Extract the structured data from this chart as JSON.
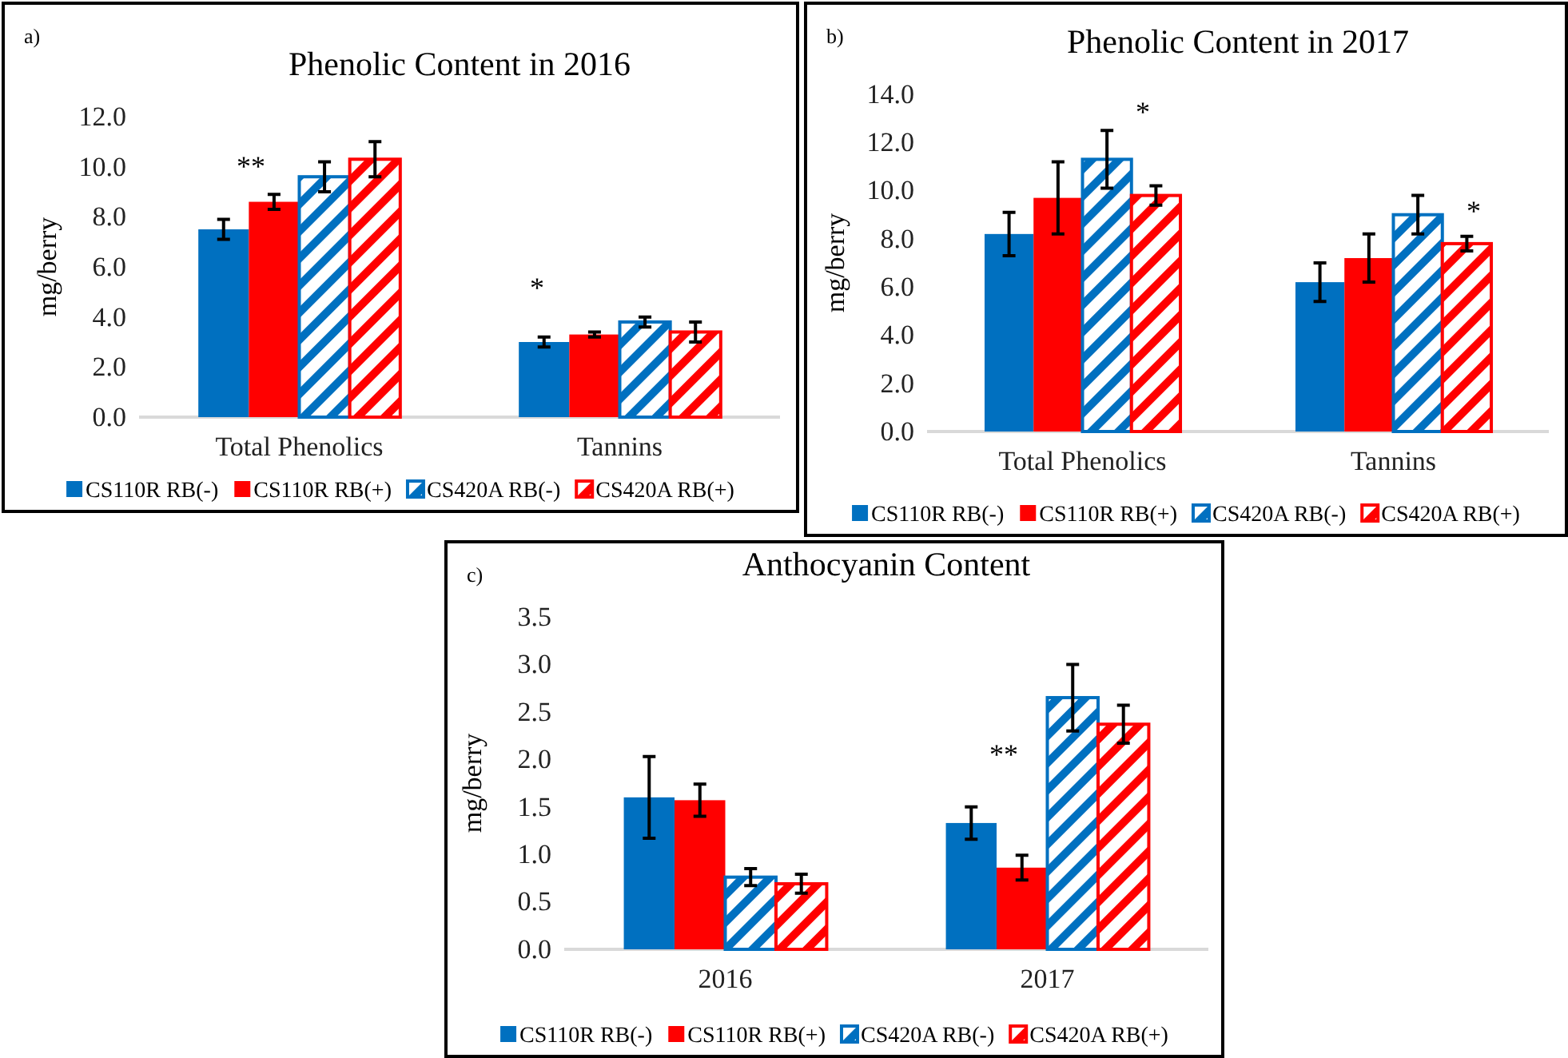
{
  "chart_data": [
    {
      "type": "bar",
      "title": "Phenolic Content in 2016",
      "ylabel": "mg/berry",
      "categories": [
        "Total Phenolics",
        "Tannins"
      ],
      "series": [
        {
          "name": "CS110R RB(-)",
          "color": "#0070c0",
          "values": [
            7.5,
            3.0
          ],
          "errors": [
            0.4,
            0.2
          ]
        },
        {
          "name": "CS110R RB(+)",
          "color": "#ff0000",
          "values": [
            8.6,
            3.3
          ],
          "errors": [
            0.3,
            0.1
          ]
        },
        {
          "name": "CS420A RB(-)",
          "color": "#0070c0",
          "values": [
            9.6,
            3.8
          ],
          "errors": [
            0.6,
            0.2
          ]
        },
        {
          "name": "CS420A RB(+)",
          "color": "#ff0000",
          "values": [
            10.3,
            3.4
          ],
          "errors": [
            0.7,
            0.4
          ]
        }
      ],
      "ylim": [
        0,
        12
      ],
      "yticks": [
        {
          "value": 0,
          "label": "0.0"
        },
        {
          "value": 2,
          "label": "2.0"
        },
        {
          "value": 4,
          "label": "4.0"
        },
        {
          "value": 6,
          "label": "6.0"
        },
        {
          "value": 8,
          "label": "8.0"
        },
        {
          "value": 10,
          "label": "10.0"
        },
        {
          "value": 12,
          "label": "12.0"
        }
      ],
      "annotations": [
        "a)",
        "**",
        "*"
      ],
      "grid": false,
      "legend": "bottom"
    },
    {
      "type": "bar",
      "title": "Phenolic Content in 2017",
      "ylabel": "mg/berry",
      "categories": [
        "Total Phenolics",
        "Tannins"
      ],
      "series": [
        {
          "name": "CS110R RB(-)",
          "color": "#0070c0",
          "values": [
            8.2,
            6.2
          ],
          "errors": [
            0.9,
            0.8
          ]
        },
        {
          "name": "CS110R RB(+)",
          "color": "#ff0000",
          "values": [
            9.7,
            7.2
          ],
          "errors": [
            1.5,
            1.0
          ]
        },
        {
          "name": "CS420A RB(-)",
          "color": "#0070c0",
          "values": [
            11.3,
            9.0
          ],
          "errors": [
            1.2,
            0.8
          ]
        },
        {
          "name": "CS420A RB(+)",
          "color": "#ff0000",
          "values": [
            9.8,
            7.8
          ],
          "errors": [
            0.4,
            0.3
          ]
        }
      ],
      "ylim": [
        0,
        14
      ],
      "yticks": [
        {
          "value": 0,
          "label": "0.0"
        },
        {
          "value": 2,
          "label": "2.0"
        },
        {
          "value": 4,
          "label": "4.0"
        },
        {
          "value": 6,
          "label": "6.0"
        },
        {
          "value": 8,
          "label": "8.0"
        },
        {
          "value": 10,
          "label": "10.0"
        },
        {
          "value": 12,
          "label": "12.0"
        },
        {
          "value": 14,
          "label": "14.0"
        }
      ],
      "annotations": [
        "b)",
        "*",
        "*"
      ],
      "grid": false,
      "legend": "bottom"
    },
    {
      "type": "bar",
      "title": "Anthocyanin Content",
      "ylabel": "mg/berry",
      "categories": [
        "2016",
        "2017"
      ],
      "series": [
        {
          "name": "CS110R RB(-)",
          "color": "#0070c0",
          "values": [
            1.6,
            1.33
          ],
          "errors": [
            0.43,
            0.17
          ]
        },
        {
          "name": "CS110R RB(+)",
          "color": "#ff0000",
          "values": [
            1.57,
            0.86
          ],
          "errors": [
            0.17,
            0.13
          ]
        },
        {
          "name": "CS420A RB(-)",
          "color": "#0070c0",
          "values": [
            0.76,
            2.65
          ],
          "errors": [
            0.09,
            0.35
          ]
        },
        {
          "name": "CS420A RB(+)",
          "color": "#ff0000",
          "values": [
            0.69,
            2.37
          ],
          "errors": [
            0.1,
            0.2
          ]
        }
      ],
      "ylim": [
        0,
        3.5
      ],
      "yticks": [
        {
          "value": 0,
          "label": "0.0"
        },
        {
          "value": 0.5,
          "label": "0.5"
        },
        {
          "value": 1,
          "label": "1.0"
        },
        {
          "value": 1.5,
          "label": "1.5"
        },
        {
          "value": 2,
          "label": "2.0"
        },
        {
          "value": 2.5,
          "label": "2.5"
        },
        {
          "value": 3,
          "label": "3.0"
        },
        {
          "value": 3.5,
          "label": "3.5"
        }
      ],
      "annotations": [
        "c)",
        "**"
      ],
      "grid": false,
      "legend": "bottom"
    }
  ]
}
